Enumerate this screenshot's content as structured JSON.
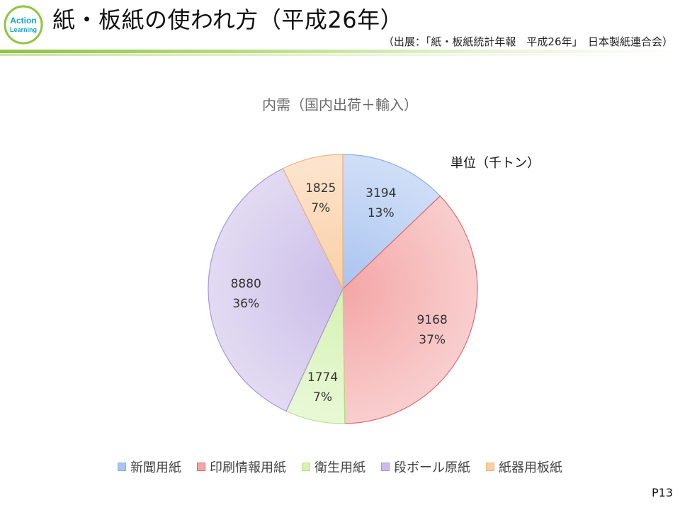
{
  "header": {
    "logo_text": "Action Learning",
    "title": "紙・板紙の使われ方（平成26年）",
    "source": "（出展：「紙・板紙統計年報　平成26年」　日本製紙連合会）"
  },
  "footer": {
    "page_number": "P13"
  },
  "unit_label": "単位（千トン）",
  "colors": {
    "accent_green": "#8dc63f",
    "logo_blue": "#1aa3c8"
  },
  "chart_data": {
    "type": "pie",
    "title": "内需（国内出荷＋輸入）",
    "legend_position": "bottom",
    "start_angle_deg": 0,
    "direction": "clockwise",
    "categories": [
      "新聞用紙",
      "印刷情報用紙",
      "衛生用紙",
      "段ボール原紙",
      "紙器用板紙"
    ],
    "values": [
      3194,
      9168,
      1774,
      8880,
      1825
    ],
    "percent_labels": [
      "13%",
      "37%",
      "7%",
      "36%",
      "7%"
    ],
    "colors": [
      "#a9c4f0",
      "#f4a6a6",
      "#d6f2b4",
      "#cbbde8",
      "#f9cfa5"
    ],
    "edge_colors": [
      "#8aaee6",
      "#e06a6a",
      "#b6df88",
      "#a996d6",
      "#f0b27e"
    ]
  }
}
